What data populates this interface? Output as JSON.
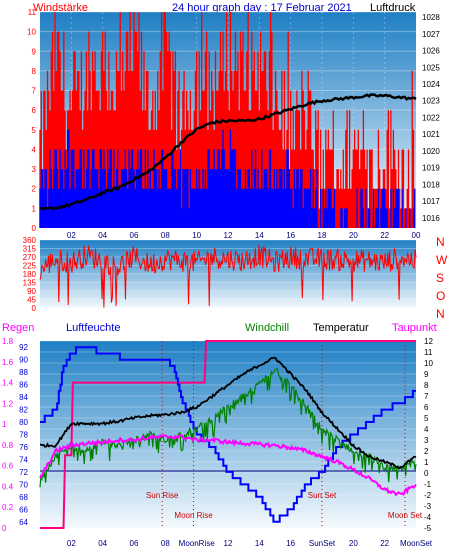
{
  "header": {
    "wind_label": "Windstärke",
    "title": "24 hour graph day : 17 Februar 2021",
    "pressure_label": "Luftdruck"
  },
  "bottom_labels": {
    "regen": "Regen",
    "luftfeuchte": "Luftfeuchte",
    "windchill": "Windchill",
    "temperatur": "Temperatur",
    "taupunkt": "Taupunkt"
  },
  "direction_labels": [
    "N",
    "W",
    "S",
    "O",
    "N"
  ],
  "events": [
    {
      "label": "Sun Rise",
      "hour": 7.8
    },
    {
      "label": "Moon Rise",
      "hour": 9.8
    },
    {
      "label": "Sun Set",
      "hour": 18.0
    },
    {
      "label": "Moon Set",
      "hour": 23.3
    }
  ],
  "x_hour_labels": [
    "02",
    "04",
    "06",
    "08",
    "10",
    "12",
    "14",
    "16",
    "18",
    "20",
    "22",
    "00"
  ],
  "bottom_x_labels": [
    "02",
    "04",
    "06",
    "08",
    "MoonRise",
    "12",
    "14",
    "16",
    "SunSet",
    "20",
    "22",
    "MoonSet"
  ],
  "colors": {
    "grad_top": "#2a86c8",
    "grad_bottom": "#f2f8fd",
    "gust": "#ff0000",
    "wind": "#0000ff",
    "pressure": "#000000",
    "direction": "#ff0000",
    "humidity": "#0000ff",
    "windchill": "#008000",
    "temperature": "#000000",
    "dewpoint": "#ff00ff",
    "rain": "#ff0080",
    "event": "#cc0000"
  },
  "chart_data": [
    {
      "type": "bar",
      "name": "wind-pressure",
      "y_left": {
        "label": "Windstärke",
        "ticks": [
          0,
          1,
          2,
          3,
          4,
          5,
          6,
          7,
          8,
          9,
          10,
          11
        ],
        "ylim": [
          0,
          11
        ]
      },
      "y_right": {
        "label": "Luftdruck",
        "ticks": [
          1016,
          1017,
          1018,
          1019,
          1020,
          1021,
          1022,
          1023,
          1024,
          1025,
          1026,
          1027,
          1028
        ],
        "ylim": [
          1015.4,
          1028.3
        ]
      },
      "x": {
        "ticks": [
          "02",
          "04",
          "06",
          "08",
          "10",
          "12",
          "14",
          "16",
          "18",
          "20",
          "22",
          "00"
        ],
        "xlim": [
          0,
          24
        ]
      },
      "series": [
        {
          "name": "gust",
          "axis": "left",
          "x": [
            0,
            1,
            2,
            3,
            4,
            5,
            6,
            7,
            8,
            9,
            10,
            11,
            12,
            13,
            14,
            15,
            16,
            17,
            18,
            19,
            20,
            21,
            22,
            23,
            24
          ],
          "values": [
            4,
            9,
            6,
            8,
            8,
            7,
            9,
            6,
            9,
            5,
            8,
            7,
            9,
            8,
            8,
            7,
            5,
            6,
            3,
            3,
            4,
            3,
            4,
            3,
            3
          ]
        },
        {
          "name": "wind",
          "axis": "left",
          "x": [
            0,
            1,
            2,
            3,
            4,
            5,
            6,
            7,
            8,
            9,
            10,
            11,
            12,
            13,
            14,
            15,
            16,
            17,
            18,
            19,
            20,
            21,
            22,
            23,
            24
          ],
          "values": [
            2,
            3,
            4,
            3,
            3,
            3,
            3,
            3,
            3,
            2,
            3,
            3,
            4,
            3,
            3,
            3,
            2,
            2,
            1,
            1,
            1,
            1,
            1,
            1,
            1
          ]
        },
        {
          "name": "pressure",
          "axis": "right",
          "x": [
            0,
            1,
            2,
            3,
            4,
            5,
            6,
            7,
            8,
            9,
            10,
            11,
            12,
            13,
            14,
            15,
            16,
            17,
            18,
            19,
            20,
            21,
            22,
            23,
            24
          ],
          "values": [
            1016.5,
            1016.6,
            1016.8,
            1017.1,
            1017.5,
            1017.8,
            1018.3,
            1018.8,
            1019.6,
            1020.5,
            1021.3,
            1021.7,
            1021.8,
            1021.8,
            1021.9,
            1022.2,
            1022.5,
            1022.8,
            1023.0,
            1023.1,
            1023.2,
            1023.3,
            1023.3,
            1023.2,
            1023.1
          ]
        }
      ]
    },
    {
      "type": "line",
      "name": "wind-direction",
      "y_left": {
        "ticks": [
          0,
          45,
          90,
          135,
          180,
          225,
          270,
          315,
          360
        ],
        "ylim": [
          0,
          360
        ]
      },
      "y_right": {
        "ticks": [
          "N",
          "W",
          "S",
          "O",
          "N"
        ]
      },
      "x": {
        "xlim": [
          0,
          24
        ]
      },
      "series": [
        {
          "name": "direction",
          "x": [
            0,
            1,
            2,
            3,
            4,
            5,
            6,
            7,
            8,
            9,
            10,
            11,
            12,
            13,
            14,
            15,
            16,
            17,
            18,
            19,
            20,
            21,
            22,
            23,
            24
          ],
          "values": [
            200,
            260,
            240,
            280,
            250,
            220,
            270,
            230,
            260,
            250,
            240,
            270,
            260,
            250,
            280,
            240,
            270,
            260,
            260,
            255,
            250,
            250,
            240,
            270,
            250
          ]
        }
      ]
    },
    {
      "type": "line",
      "name": "humidity-temperature",
      "y_outer_left": {
        "label": "Regen",
        "ticks": [
          0,
          0.2,
          0.4,
          0.6,
          0.8,
          1,
          1.2,
          1.4,
          1.6,
          1.8
        ],
        "ylim": [
          0,
          1.8
        ]
      },
      "y_inner_left": {
        "label": "Luftfeuchte",
        "ticks": [
          64,
          66,
          68,
          70,
          72,
          74,
          76,
          78,
          80,
          82,
          84,
          86,
          88,
          90,
          92
        ],
        "ylim": [
          63,
          93
        ]
      },
      "y_right": {
        "label": "Temperatur",
        "ticks": [
          -5,
          -4,
          -3,
          -2,
          -1,
          0,
          1,
          2,
          3,
          4,
          5,
          6,
          7,
          8,
          9,
          10,
          11,
          12
        ],
        "ylim": [
          -5,
          12
        ]
      },
      "x": {
        "xlim": [
          0,
          24
        ]
      },
      "series": [
        {
          "name": "Regen",
          "axis": "outer_left",
          "x": [
            0,
            1.5,
            1.6,
            2.0,
            2.1,
            10.5,
            10.6,
            24
          ],
          "values": [
            0,
            0,
            0.7,
            0.7,
            1.4,
            1.4,
            1.8,
            1.8
          ]
        },
        {
          "name": "Luftfeuchte",
          "axis": "inner_left",
          "x": [
            0,
            1,
            1.5,
            2,
            2.5,
            3,
            4,
            6,
            8,
            8.5,
            9,
            10,
            11,
            12,
            13,
            14,
            15,
            16,
            17,
            18,
            19,
            20,
            21,
            22,
            23,
            24
          ],
          "values": [
            80,
            82,
            89,
            91,
            92,
            92,
            91,
            90,
            90,
            89,
            84,
            78,
            76,
            72,
            70,
            68,
            64,
            66,
            70,
            72,
            76,
            78,
            80,
            82,
            83,
            85
          ]
        },
        {
          "name": "Windchill",
          "axis": "right",
          "x": [
            0,
            1,
            2,
            3,
            4,
            5,
            6,
            7,
            8,
            9,
            10,
            11,
            12,
            13,
            14,
            15,
            16,
            17,
            18,
            19,
            20,
            21,
            22,
            23,
            24
          ],
          "values": [
            -0.5,
            1.5,
            2.5,
            2.0,
            3.0,
            2.5,
            3.0,
            3.5,
            3.0,
            3.5,
            4.0,
            5.0,
            6.0,
            7.0,
            8.0,
            9.5,
            8.0,
            6.0,
            4.0,
            3.0,
            2.0,
            1.5,
            0.5,
            0.5,
            1.0
          ]
        },
        {
          "name": "Temperatur",
          "axis": "right",
          "x": [
            0,
            1,
            2,
            3,
            4,
            5,
            6,
            7,
            8,
            9,
            10,
            11,
            12,
            13,
            14,
            15,
            16,
            17,
            18,
            19,
            20,
            21,
            22,
            23,
            24
          ],
          "values": [
            2.5,
            2.5,
            4.5,
            4.5,
            4.5,
            4.7,
            5.0,
            5.2,
            5.3,
            5.5,
            6.0,
            7.0,
            8.0,
            9.0,
            9.8,
            10.5,
            9.0,
            7.5,
            5.5,
            4.0,
            2.5,
            1.5,
            1.0,
            0.5,
            1.5
          ]
        },
        {
          "name": "Taupunkt",
          "axis": "right",
          "x": [
            0,
            1,
            2,
            3,
            4,
            5,
            6,
            7,
            8,
            9,
            10,
            11,
            12,
            13,
            14,
            15,
            16,
            17,
            18,
            19,
            20,
            21,
            22,
            23,
            24
          ],
          "values": [
            -0.5,
            2.0,
            2.5,
            2.7,
            2.8,
            3.0,
            3.0,
            3.2,
            3.3,
            3.3,
            3.0,
            3.0,
            2.8,
            2.7,
            2.6,
            2.5,
            2.3,
            2.0,
            1.5,
            1.0,
            0.3,
            -0.5,
            -1.5,
            -2.0,
            -1.0
          ]
        }
      ]
    }
  ]
}
